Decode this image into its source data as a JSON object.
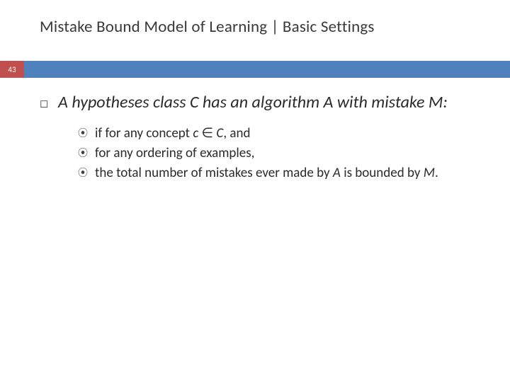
{
  "colors": {
    "title_text": "#3a3938",
    "page_badge_bg": "#c0504d",
    "page_badge_text": "#ffffff",
    "bar_bg": "#4f81bd",
    "body_text": "#2b2b2b",
    "bullet_color": "#3f3f3f"
  },
  "title": "Mistake Bound Model of Learning | Basic Settings",
  "page_number": "43",
  "main_point_prefix": "A hypotheses class ",
  "main_point_mid1": "C",
  "main_point_mid2": " has an algorithm ",
  "main_point_mid3": "A",
  "main_point_mid4": " with mistake ",
  "main_point_mid5": "M:",
  "sub1_a": "if for any concept ",
  "sub1_b": "c",
  "sub1_c": " ∈ ",
  "sub1_d": "C",
  "sub1_e": ", and",
  "sub2": "for any ordering of examples,",
  "sub3_a": "the total number of mistakes ever made by ",
  "sub3_b": "A",
  "sub3_c": " is bounded by ",
  "sub3_d": "M",
  "sub3_e": ".",
  "bullets": {
    "lvl1": "◻",
    "lvl2": "⦿"
  }
}
